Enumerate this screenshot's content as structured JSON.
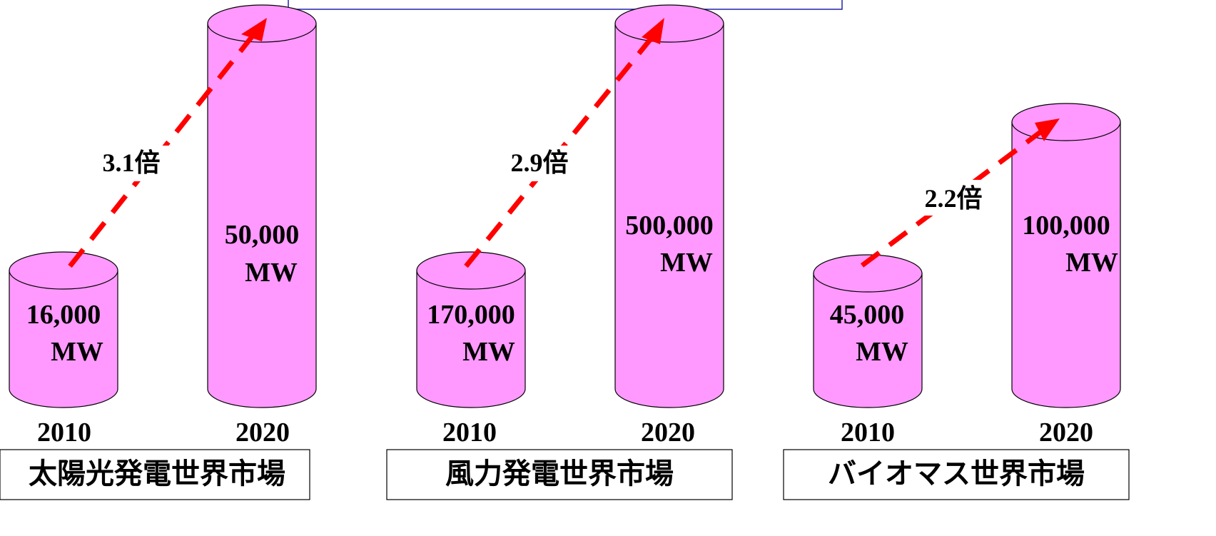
{
  "chart_data": [
    {
      "type": "bar",
      "title": "太陽光発電世界市場",
      "categories": [
        "2010",
        "2020"
      ],
      "values": [
        16000,
        50000
      ],
      "value_labels": [
        "16,000",
        "50,000"
      ],
      "unit": "MW",
      "ratio_label": "3.1倍"
    },
    {
      "type": "bar",
      "title": "風力発電世界市場",
      "categories": [
        "2010",
        "2020"
      ],
      "values": [
        170000,
        500000
      ],
      "value_labels": [
        "170,000",
        "500,000"
      ],
      "unit": "MW",
      "ratio_label": "2.9倍"
    },
    {
      "type": "bar",
      "title": "バイオマス世界市場",
      "categories": [
        "2010",
        "2020"
      ],
      "values": [
        45000,
        100000
      ],
      "value_labels": [
        "45,000",
        "100,000"
      ],
      "unit": "MW",
      "ratio_label": "2.2倍"
    }
  ],
  "colors": {
    "cylinder": "#FF99FF",
    "arrow": "#FF0000",
    "banner_border": "#2222aa"
  },
  "icons": {
    "arrow": "dashed-arrow-icon"
  }
}
